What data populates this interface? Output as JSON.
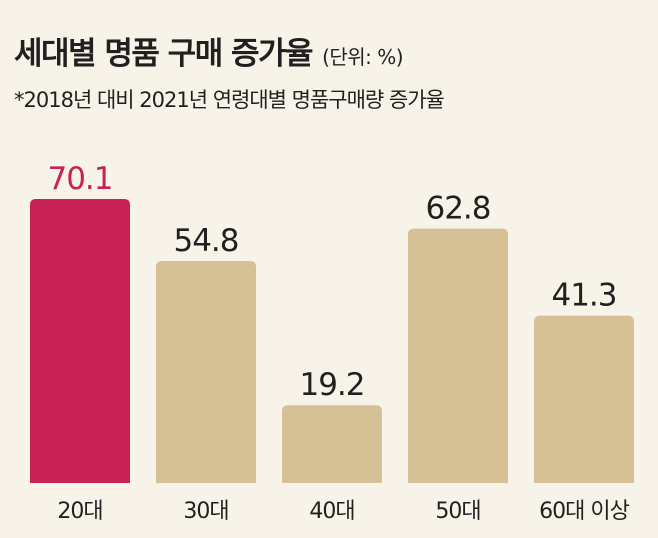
{
  "header": {
    "title": "세대별 명품 구매 증가율",
    "unit": "(단위: %)",
    "subtitle": "*2018년 대비 2021년 연령대별 명품구매량 증가율"
  },
  "colors": {
    "background": "#f8f3e9",
    "highlight": "#c82155",
    "bar": "#d6c197",
    "text": "#231f20"
  },
  "chart_data": {
    "type": "bar",
    "categories": [
      "20대",
      "30대",
      "40대",
      "50대",
      "60대 이상"
    ],
    "values": [
      70.1,
      54.8,
      19.2,
      62.8,
      41.3
    ],
    "value_labels": [
      "70.1",
      "54.8",
      "19.2",
      "62.8",
      "41.3"
    ],
    "highlight_index": 0,
    "title": "세대별 명품 구매 증가율",
    "xlabel": "",
    "ylabel": "",
    "ylim": [
      0,
      70.1
    ],
    "grid": false,
    "legend": "none"
  }
}
